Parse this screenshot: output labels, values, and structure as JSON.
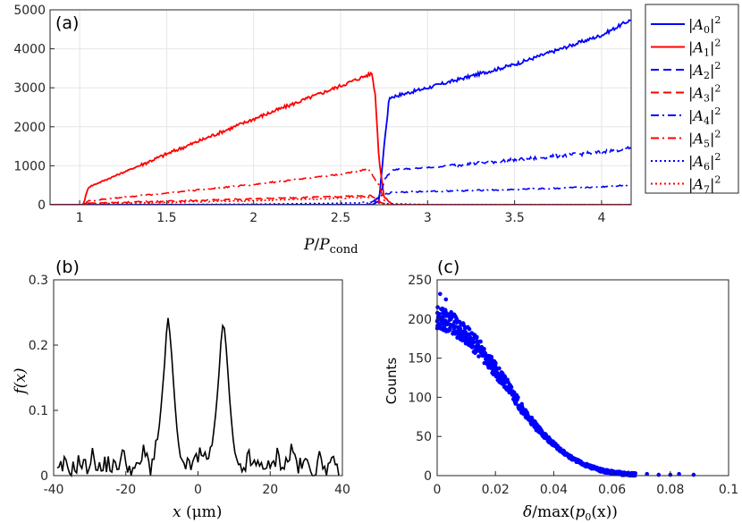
{
  "chart_data": [
    {
      "panel": "(a)",
      "type": "line",
      "xlabel_var": "P",
      "xlabel_sub": "cond",
      "xlim": [
        0.83,
        4.17
      ],
      "ylim": [
        0,
        5000
      ],
      "xticks": [
        "1",
        "1.5",
        "2",
        "2.5",
        "3",
        "3.5",
        "4"
      ],
      "yticks": [
        "0",
        "1000",
        "2000",
        "3000",
        "4000",
        "5000"
      ],
      "grid": true,
      "legend_location": "outside-right",
      "series": [
        {
          "name": "|A0|²",
          "label_index": "0",
          "color": "#0000ff",
          "style": "solid",
          "x": [
            0.83,
            2.68,
            2.72,
            2.75,
            2.78,
            3.0,
            3.5,
            4.0,
            4.17
          ],
          "y": [
            0,
            0,
            80,
            1500,
            2750,
            3000,
            3600,
            4350,
            4750
          ]
        },
        {
          "name": "|A1|²",
          "label_index": "1",
          "color": "#ff0000",
          "style": "solid",
          "x": [
            0.83,
            1.02,
            1.05,
            1.5,
            2.0,
            2.5,
            2.68,
            2.7,
            2.72,
            2.75,
            2.8,
            4.17
          ],
          "y": [
            0,
            0,
            450,
            1300,
            2200,
            3050,
            3370,
            2800,
            1200,
            200,
            0,
            0
          ]
        },
        {
          "name": "|A2|²",
          "label_index": "2",
          "color": "#0000ff",
          "style": "dashed",
          "x": [
            0.83,
            2.66,
            2.72,
            2.76,
            2.8,
            3.0,
            3.5,
            4.0,
            4.17
          ],
          "y": [
            0,
            0,
            200,
            700,
            900,
            950,
            1150,
            1350,
            1450
          ]
        },
        {
          "name": "|A3|²",
          "label_index": "3",
          "color": "#ff0000",
          "style": "dashed",
          "x": [
            0.83,
            1.02,
            1.05,
            1.5,
            2.0,
            2.5,
            2.68,
            2.74,
            2.78,
            4.17
          ],
          "y": [
            0,
            0,
            40,
            90,
            150,
            210,
            230,
            40,
            0,
            0
          ]
        },
        {
          "name": "|A4|²",
          "label_index": "4",
          "color": "#0000ff",
          "style": "dashdot",
          "x": [
            0.83,
            2.66,
            2.74,
            2.8,
            3.0,
            3.5,
            4.0,
            4.17
          ],
          "y": [
            0,
            0,
            250,
            320,
            340,
            390,
            460,
            510
          ]
        },
        {
          "name": "|A5|²",
          "label_index": "5",
          "color": "#ff0000",
          "style": "dashdot",
          "x": [
            0.83,
            1.02,
            1.05,
            1.5,
            2.0,
            2.5,
            2.66,
            2.72,
            2.76,
            4.17
          ],
          "y": [
            0,
            0,
            100,
            300,
            520,
            780,
            920,
            500,
            0,
            0
          ]
        },
        {
          "name": "|A6|²",
          "label_index": "6",
          "color": "#0000ff",
          "style": "dotted",
          "x": [
            0.83,
            2.0,
            2.5,
            2.7,
            2.75,
            3.0,
            4.17
          ],
          "y": [
            0,
            15,
            40,
            60,
            30,
            5,
            0
          ]
        },
        {
          "name": "|A7|²",
          "label_index": "7",
          "color": "#ff0000",
          "style": "dotted",
          "x": [
            0.83,
            1.02,
            1.05,
            1.5,
            2.0,
            2.5,
            2.68,
            2.74,
            2.78,
            4.17
          ],
          "y": [
            0,
            0,
            25,
            60,
            110,
            170,
            200,
            30,
            0,
            0
          ]
        }
      ]
    },
    {
      "panel": "(b)",
      "type": "line",
      "xlabel_var": "x",
      "xlabel_unit": " (μm)",
      "ylabel": "f(x)",
      "xlim": [
        -40,
        40
      ],
      "ylim": [
        0,
        0.3
      ],
      "xticks": [
        "-40",
        "-20",
        "0",
        "20",
        "40"
      ],
      "yticks": [
        "0",
        "0.1",
        "0.2",
        "0.3"
      ],
      "grid": false,
      "series": [
        {
          "name": "f(x)",
          "color": "#000000",
          "x": [
            -39,
            -37,
            -35,
            -33,
            -31,
            -29,
            -27,
            -25,
            -23,
            -21,
            -19,
            -17,
            -15,
            -13,
            -12,
            -11,
            -10,
            -9,
            -8.5,
            -8,
            -7.5,
            -7,
            -6,
            -5,
            -4,
            -3,
            -1,
            1,
            3,
            4,
            5,
            6,
            6.5,
            7,
            7.5,
            8,
            9,
            10,
            11,
            12,
            14,
            16,
            18,
            20,
            22,
            24,
            26,
            28,
            30,
            32,
            34,
            36,
            38,
            39
          ],
          "y": [
            0.0,
            0.015,
            0.005,
            0.02,
            0.01,
            0.03,
            0.005,
            0.02,
            0.008,
            0.03,
            0.012,
            0.005,
            0.035,
            0.01,
            0.04,
            0.06,
            0.12,
            0.19,
            0.25,
            0.23,
            0.2,
            0.16,
            0.08,
            0.03,
            0.02,
            0.01,
            0.02,
            0.03,
            0.015,
            0.05,
            0.1,
            0.17,
            0.22,
            0.235,
            0.22,
            0.18,
            0.1,
            0.04,
            0.02,
            0.005,
            0.025,
            0.01,
            0.02,
            0.005,
            0.03,
            0.012,
            0.04,
            0.01,
            0.018,
            0.005,
            0.025,
            0.01,
            0.015,
            0.0
          ]
        }
      ]
    },
    {
      "panel": "(c)",
      "type": "scatter",
      "xlabel": "δ/max(p0(x))",
      "xlabel_var": "δ",
      "xlabel_fn": "/max(",
      "xlabel_p": "p",
      "xlabel_psub": "0",
      "xlabel_px": "(x))",
      "ylabel": "Counts",
      "xlim": [
        0,
        0.1
      ],
      "ylim": [
        0,
        250
      ],
      "xticks": [
        "0",
        "0.02",
        "0.04",
        "0.06",
        "0.08",
        "0.1"
      ],
      "yticks": [
        "0",
        "50",
        "100",
        "150",
        "200",
        "250"
      ],
      "grid": false,
      "marker_color": "#0000ff",
      "trend": {
        "x": [
          0,
          0.005,
          0.01,
          0.015,
          0.02,
          0.025,
          0.03,
          0.035,
          0.04,
          0.045,
          0.05,
          0.055,
          0.06,
          0.065,
          0.07,
          0.075,
          0.08,
          0.085,
          0.089
        ],
        "y": [
          202,
          195,
          180,
          160,
          135,
          110,
          80,
          58,
          40,
          25,
          15,
          8,
          4,
          2,
          1,
          0.5,
          0.2,
          0.1,
          0.0
        ]
      },
      "outliers": [
        {
          "x": 0.001,
          "y": 232
        },
        {
          "x": 0.003,
          "y": 225
        },
        {
          "x": 0.068,
          "y": 3
        },
        {
          "x": 0.072,
          "y": 2
        },
        {
          "x": 0.076,
          "y": 1
        },
        {
          "x": 0.08,
          "y": 1
        },
        {
          "x": 0.083,
          "y": 2
        },
        {
          "x": 0.088,
          "y": 1
        }
      ]
    }
  ],
  "legend": {
    "entries": [
      {
        "base": "|A",
        "index": "0",
        "tail": "|",
        "power": "2",
        "color": "#0000ff",
        "style": "solid"
      },
      {
        "base": "|A",
        "index": "1",
        "tail": "|",
        "power": "2",
        "color": "#ff0000",
        "style": "solid"
      },
      {
        "base": "|A",
        "index": "2",
        "tail": "|",
        "power": "2",
        "color": "#0000ff",
        "style": "dashed"
      },
      {
        "base": "|A",
        "index": "3",
        "tail": "|",
        "power": "2",
        "color": "#ff0000",
        "style": "dashed"
      },
      {
        "base": "|A",
        "index": "4",
        "tail": "|",
        "power": "2",
        "color": "#0000ff",
        "style": "dashdot"
      },
      {
        "base": "|A",
        "index": "5",
        "tail": "|",
        "power": "2",
        "color": "#ff0000",
        "style": "dashdot"
      },
      {
        "base": "|A",
        "index": "6",
        "tail": "|",
        "power": "2",
        "color": "#0000ff",
        "style": "dotted"
      },
      {
        "base": "|A",
        "index": "7",
        "tail": "|",
        "power": "2",
        "color": "#ff0000",
        "style": "dotted"
      }
    ]
  }
}
